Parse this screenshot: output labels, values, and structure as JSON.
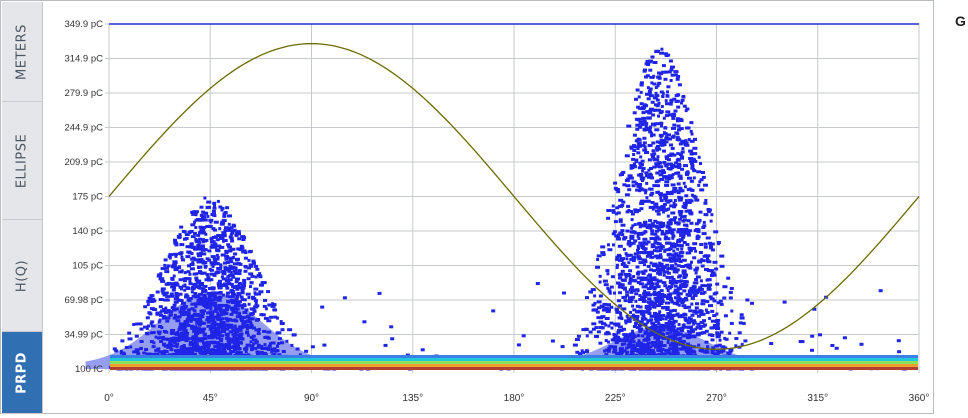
{
  "side_tabs": [
    {
      "label": "METERS",
      "active": false
    },
    {
      "label": "ELLIPSE",
      "active": false
    },
    {
      "label": "H(Q)",
      "active": false
    },
    {
      "label": "PRPD",
      "active": true
    }
  ],
  "corner_label": "G",
  "colors": {
    "background": "#ffffff",
    "grid": "#c6c9ce",
    "scatter_dense": "#8a93f0",
    "scatter_sparse": "#1f24e6",
    "reference_sine": "#6b6b00",
    "top_line": "#2030d0",
    "tab_active": "#2f6fb2",
    "baseline_bands": [
      "#3a7ee8",
      "#20c8d8",
      "#8de05a",
      "#f0a030",
      "#b04030"
    ]
  },
  "chart_data": {
    "type": "scatter",
    "title": "",
    "xlabel": "",
    "ylabel": "",
    "xlim": [
      0,
      360
    ],
    "ylim": [
      0,
      349.9
    ],
    "x_tick_values": [
      0,
      45,
      90,
      135,
      180,
      225,
      270,
      315,
      360
    ],
    "x_tick_labels": [
      "0°",
      "45°",
      "90°",
      "135°",
      "180°",
      "225°",
      "270°",
      "315°",
      "360°"
    ],
    "y_tick_values": [
      0,
      34.99,
      69.98,
      105,
      140,
      175,
      209.9,
      244.9,
      279.9,
      314.9,
      349.9
    ],
    "y_tick_labels": [
      "100 fC",
      "34.99 pC",
      "69.98 pC",
      "105 pC",
      "140 pC",
      "175 pC",
      "209.9 pC",
      "244.9 pC",
      "279.9 pC",
      "314.9 pC",
      "349.9 pC"
    ],
    "grid": true,
    "reference_sine": {
      "offset_pC": 175,
      "amplitude_pC": 155,
      "phase_deg": 0
    },
    "clusters": [
      {
        "name": "",
        "center_phase_deg": 45,
        "phase_spread_deg": 28,
        "peak_charge_pC": 175,
        "count": 1900
      },
      {
        "name": "",
        "center_phase_deg": 245,
        "phase_spread_deg": 26,
        "peak_charge_pC": 325,
        "count": 2400
      }
    ]
  }
}
